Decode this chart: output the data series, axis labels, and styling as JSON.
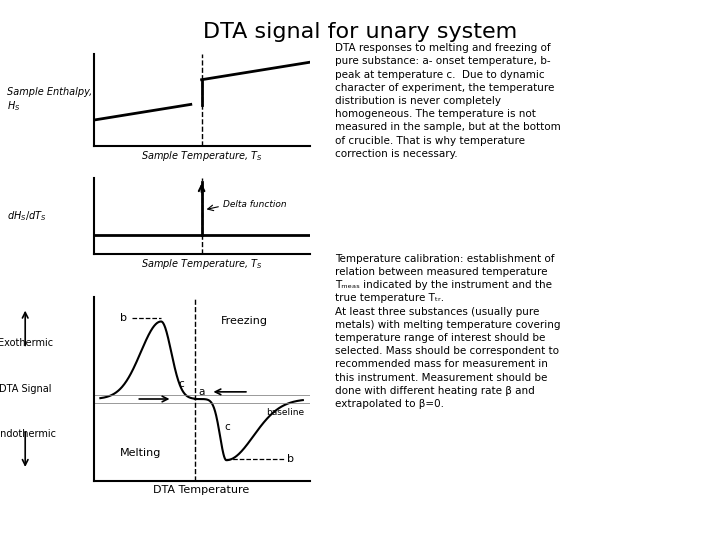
{
  "title": "DTA signal for unary system",
  "title_fontsize": 16,
  "background_color": "#ffffff",
  "text_color": "#000000",
  "right_text_1": "DTA responses to melting and freezing of\npure substance: a- onset temperature, b-\npeak at temperature c.  Due to dynamic\ncharacter of experiment, the temperature\ndistribution is never completely\nhomogeneous. The temperature is not\nmeasured in the sample, but at the bottom\nof crucible. That is why temperature\ncorrection is necessary.",
  "right_text_2": "Temperature calibration: establishment of\nrelation between measured temperature\nTₘₑₐₛ indicated by the instrument and the\ntrue temperature Tₜᵣ.\nAt least three substances (usually pure\nmetals) with melting temperature covering\ntemperature range of interest should be\nselected. Mass should be correspondent to\nrecommended mass for measurement in\nthis instrument. Measurement should be\ndone with different heating rate β and\nextrapolated to β=0.",
  "label_enthalpy": "Sample Enthalpy,\n$H_S$",
  "label_dHdT": "$dH_S/dT_S$",
  "label_xaxis_top": "Sample Temperature, $T_S$",
  "label_xaxis_mid": "Sample Temperature, $T_S$",
  "label_xaxis_bot": "DTA Temperature",
  "label_exothermic": "Exothermic",
  "label_endothermic": "Endothermic",
  "label_dta_signal": "DTA Signal",
  "label_freezing": "Freezing",
  "label_melting": "Melting",
  "label_baseline": "baseline",
  "label_delta": "Delta function"
}
